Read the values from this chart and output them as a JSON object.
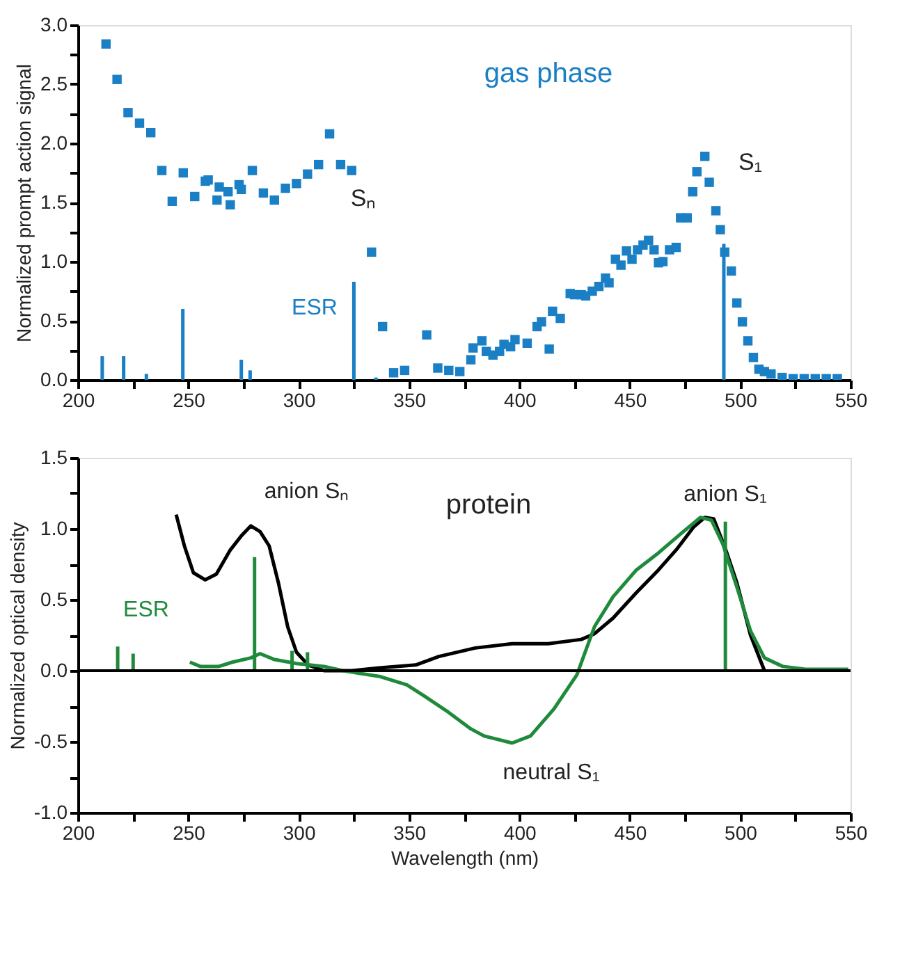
{
  "chart_data": [
    {
      "type": "scatter",
      "ylabel": "Normalized prompt action signal",
      "marker": "square",
      "grid": false,
      "xlim": [
        200,
        550
      ],
      "ylim": [
        0,
        3.0
      ],
      "xticks": [
        200,
        {
          "value": 225,
          "label": null
        },
        250,
        {
          "value": 275,
          "label": null
        },
        300,
        {
          "value": 325,
          "label": null
        },
        350,
        {
          "value": 375,
          "label": null
        },
        400,
        {
          "value": 425,
          "label": null
        },
        450,
        {
          "value": 475,
          "label": null
        },
        500,
        {
          "value": 525,
          "label": null
        },
        550
      ],
      "yticks": [
        {
          "value": 0,
          "label": "0.0"
        },
        {
          "value": 0.25,
          "label": null
        },
        0.5,
        {
          "value": 0.75,
          "label": null
        },
        {
          "value": 1,
          "label": "1.0"
        },
        {
          "value": 1.25,
          "label": null
        },
        1.5,
        {
          "value": 1.75,
          "label": null
        },
        {
          "value": 2,
          "label": "2.0"
        },
        {
          "value": 2.25,
          "label": null
        },
        2.5,
        {
          "value": 2.75,
          "label": null
        },
        {
          "value": 3,
          "label": "3.0"
        }
      ],
      "series": [
        {
          "color": "#1a7fc4",
          "x": [
            212.7,
            217.7,
            222.7,
            227.9,
            233,
            238,
            242.7,
            247.7,
            252.9,
            257.7,
            259,
            263,
            264,
            268,
            269,
            273,
            274,
            279,
            284,
            289,
            294,
            299,
            304,
            309,
            314,
            319,
            324,
            333,
            338,
            343,
            348,
            358,
            363,
            368,
            373,
            378,
            379,
            383,
            385,
            388,
            391,
            393,
            396,
            398,
            403.5,
            408,
            410,
            413.5,
            415,
            418.5,
            423,
            425,
            428,
            430,
            433,
            436,
            439,
            440.6,
            443.5,
            446,
            448.5,
            451,
            453.5,
            456,
            458.5,
            461,
            463,
            465,
            468,
            471,
            473,
            476,
            478.5,
            480.4,
            484,
            486,
            489,
            491,
            493,
            496,
            498.5,
            501,
            503.5,
            506,
            508.5,
            511,
            514,
            519,
            524,
            529,
            534,
            539,
            544
          ],
          "values": [
            2.84,
            2.54,
            2.26,
            2.17,
            2.09,
            1.77,
            1.51,
            1.75,
            1.55,
            1.68,
            1.69,
            1.52,
            1.63,
            1.59,
            1.48,
            1.65,
            1.61,
            1.77,
            1.58,
            1.52,
            1.62,
            1.66,
            1.74,
            1.82,
            2.08,
            1.82,
            1.77,
            1.08,
            0.45,
            0.06,
            0.08,
            0.38,
            0.1,
            0.08,
            0.07,
            0.17,
            0.27,
            0.33,
            0.24,
            0.21,
            0.24,
            0.3,
            0.28,
            0.34,
            0.31,
            0.45,
            0.49,
            0.26,
            0.58,
            0.52,
            0.73,
            0.72,
            0.72,
            0.71,
            0.75,
            0.79,
            0.86,
            0.82,
            1.02,
            0.97,
            1.09,
            1.02,
            1.1,
            1.14,
            1.18,
            1.1,
            0.99,
            1.0,
            1.1,
            1.12,
            1.37,
            1.37,
            1.59,
            1.76,
            1.89,
            1.67,
            1.43,
            1.27,
            1.08,
            0.92,
            0.65,
            0.49,
            0.33,
            0.19,
            0.09,
            0.07,
            0.05,
            0.02,
            0.01,
            0.01,
            0.01,
            0.01,
            0.01
          ]
        },
        {
          "type": "bar",
          "name": "ESR",
          "color": "#1a7fc4",
          "x": [
            211,
            220.7,
            231,
            247.5,
            274,
            278,
            325,
            335,
            492.6
          ],
          "values": [
            0.2,
            0.2,
            0.05,
            0.6,
            0.17,
            0.08,
            0.83,
            0.02,
            1.15
          ]
        }
      ],
      "annotations": [
        "gas phase",
        "Sₙ",
        "S₁"
      ]
    },
    {
      "type": "line",
      "xlabel": "Wavelength (nm)",
      "ylabel": "Normalized optical density",
      "grid": false,
      "line_style": "solid",
      "xlim": [
        200,
        550
      ],
      "ylim": [
        -1.0,
        1.5
      ],
      "xticks": [
        200,
        {
          "value": 225,
          "label": null
        },
        250,
        {
          "value": 275,
          "label": null
        },
        300,
        {
          "value": 325,
          "label": null
        },
        350,
        {
          "value": 375,
          "label": null
        },
        400,
        {
          "value": 425,
          "label": null
        },
        450,
        {
          "value": 475,
          "label": null
        },
        500,
        {
          "value": 525,
          "label": null
        },
        550
      ],
      "yticks": [
        {
          "value": -1,
          "label": "-1.0"
        },
        {
          "value": -0.75,
          "label": null
        },
        -0.5,
        {
          "value": -0.25,
          "label": null
        },
        {
          "value": 0,
          "label": "0.0"
        },
        {
          "value": 0.25,
          "label": null
        },
        0.5,
        {
          "value": 0.75,
          "label": null
        },
        {
          "value": 1,
          "label": "1.0"
        },
        {
          "value": 1.25,
          "label": null
        },
        1.5
      ],
      "series": [
        {
          "color": "#000000",
          "x": [
            244.5,
            248.2,
            252.3,
            257.6,
            262.7,
            269,
            274,
            278.3,
            282.5,
            286.6,
            290.8,
            295,
            299,
            304.3,
            311.5,
            324,
            336.5,
            353,
            363.5,
            380,
            396.7,
            413,
            428,
            434,
            442.4,
            453,
            463,
            471.5,
            478.8,
            484,
            488,
            493.3,
            498.5,
            504.7,
            511
          ],
          "values": [
            1.1,
            0.88,
            0.69,
            0.64,
            0.68,
            0.85,
            0.95,
            1.02,
            0.98,
            0.88,
            0.62,
            0.31,
            0.13,
            0.04,
            0.0,
            0.0,
            0.02,
            0.04,
            0.1,
            0.16,
            0.19,
            0.19,
            0.22,
            0.26,
            0.37,
            0.55,
            0.71,
            0.86,
            1.01,
            1.08,
            1.07,
            0.86,
            0.62,
            0.25,
            0.0
          ]
        },
        {
          "color": "#1f8a3c",
          "x": [
            250.7,
            255.4,
            263.8,
            270,
            278.3,
            282.5,
            288.7,
            299,
            311.5,
            320,
            336.5,
            349,
            357,
            367.6,
            378,
            384,
            396.7,
            405,
            415.6,
            426,
            434,
            442.4,
            453,
            463,
            473.5,
            482,
            487,
            492.2,
            498.5,
            504.7,
            511,
            519.3,
            529.6,
            549
          ],
          "values": [
            0.06,
            0.03,
            0.03,
            0.06,
            0.09,
            0.12,
            0.08,
            0.05,
            0.03,
            0.0,
            -0.04,
            -0.1,
            -0.18,
            -0.29,
            -0.41,
            -0.46,
            -0.51,
            -0.46,
            -0.27,
            -0.03,
            0.31,
            0.52,
            0.71,
            0.83,
            0.97,
            1.08,
            1.06,
            0.89,
            0.59,
            0.28,
            0.09,
            0.03,
            0.01,
            0.01
          ]
        },
        {
          "type": "bar",
          "name": "ESR",
          "color": "#1f8a3c",
          "x": [
            218,
            225,
            280,
            297,
            304,
            493.3
          ],
          "values": [
            0.17,
            0.12,
            0.8,
            0.14,
            0.13,
            1.05
          ]
        }
      ],
      "ref_lines": [
        {
          "axis": "y",
          "value": 0,
          "color": "#000000"
        }
      ],
      "annotations": [
        "anion Sₙ",
        "protein",
        "anion S₁",
        "neutral S₁"
      ]
    }
  ]
}
